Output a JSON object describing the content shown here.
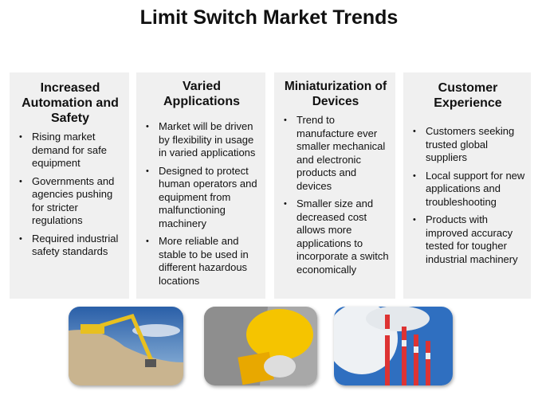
{
  "title": "Limit Switch Market Trends",
  "panels": [
    {
      "heading": "Increased Automation and Safety",
      "items": [
        "Rising market demand for safe equipment",
        "Governments and agencies pushing for stricter regulations",
        "Required industrial safety standards"
      ]
    },
    {
      "heading": "Varied Applications",
      "items": [
        "Market will be driven by flexibility in usage in varied applications",
        "Designed to protect human operators and equipment from malfunctioning machinery",
        "More reliable and stable to be used in different hazardous locations"
      ]
    },
    {
      "heading": "Miniaturization of Devices",
      "items": [
        "Trend to manufacture ever smaller mechanical and electronic products and devices",
        "Smaller size and decreased cost allows more applications to incorporate a switch economically"
      ]
    },
    {
      "heading": "Customer Experience",
      "items": [
        "Customers seeking trusted global suppliers",
        "Local support for new applications and troubleshooting",
        "Products with improved accuracy tested for tougher industrial machinery"
      ]
    }
  ],
  "photos": [
    "excavator",
    "hard-hat",
    "smokestacks"
  ],
  "colors": {
    "panel": "#f0f0f0",
    "sky": "#2f6fc0",
    "yellow": "#f5c400"
  }
}
